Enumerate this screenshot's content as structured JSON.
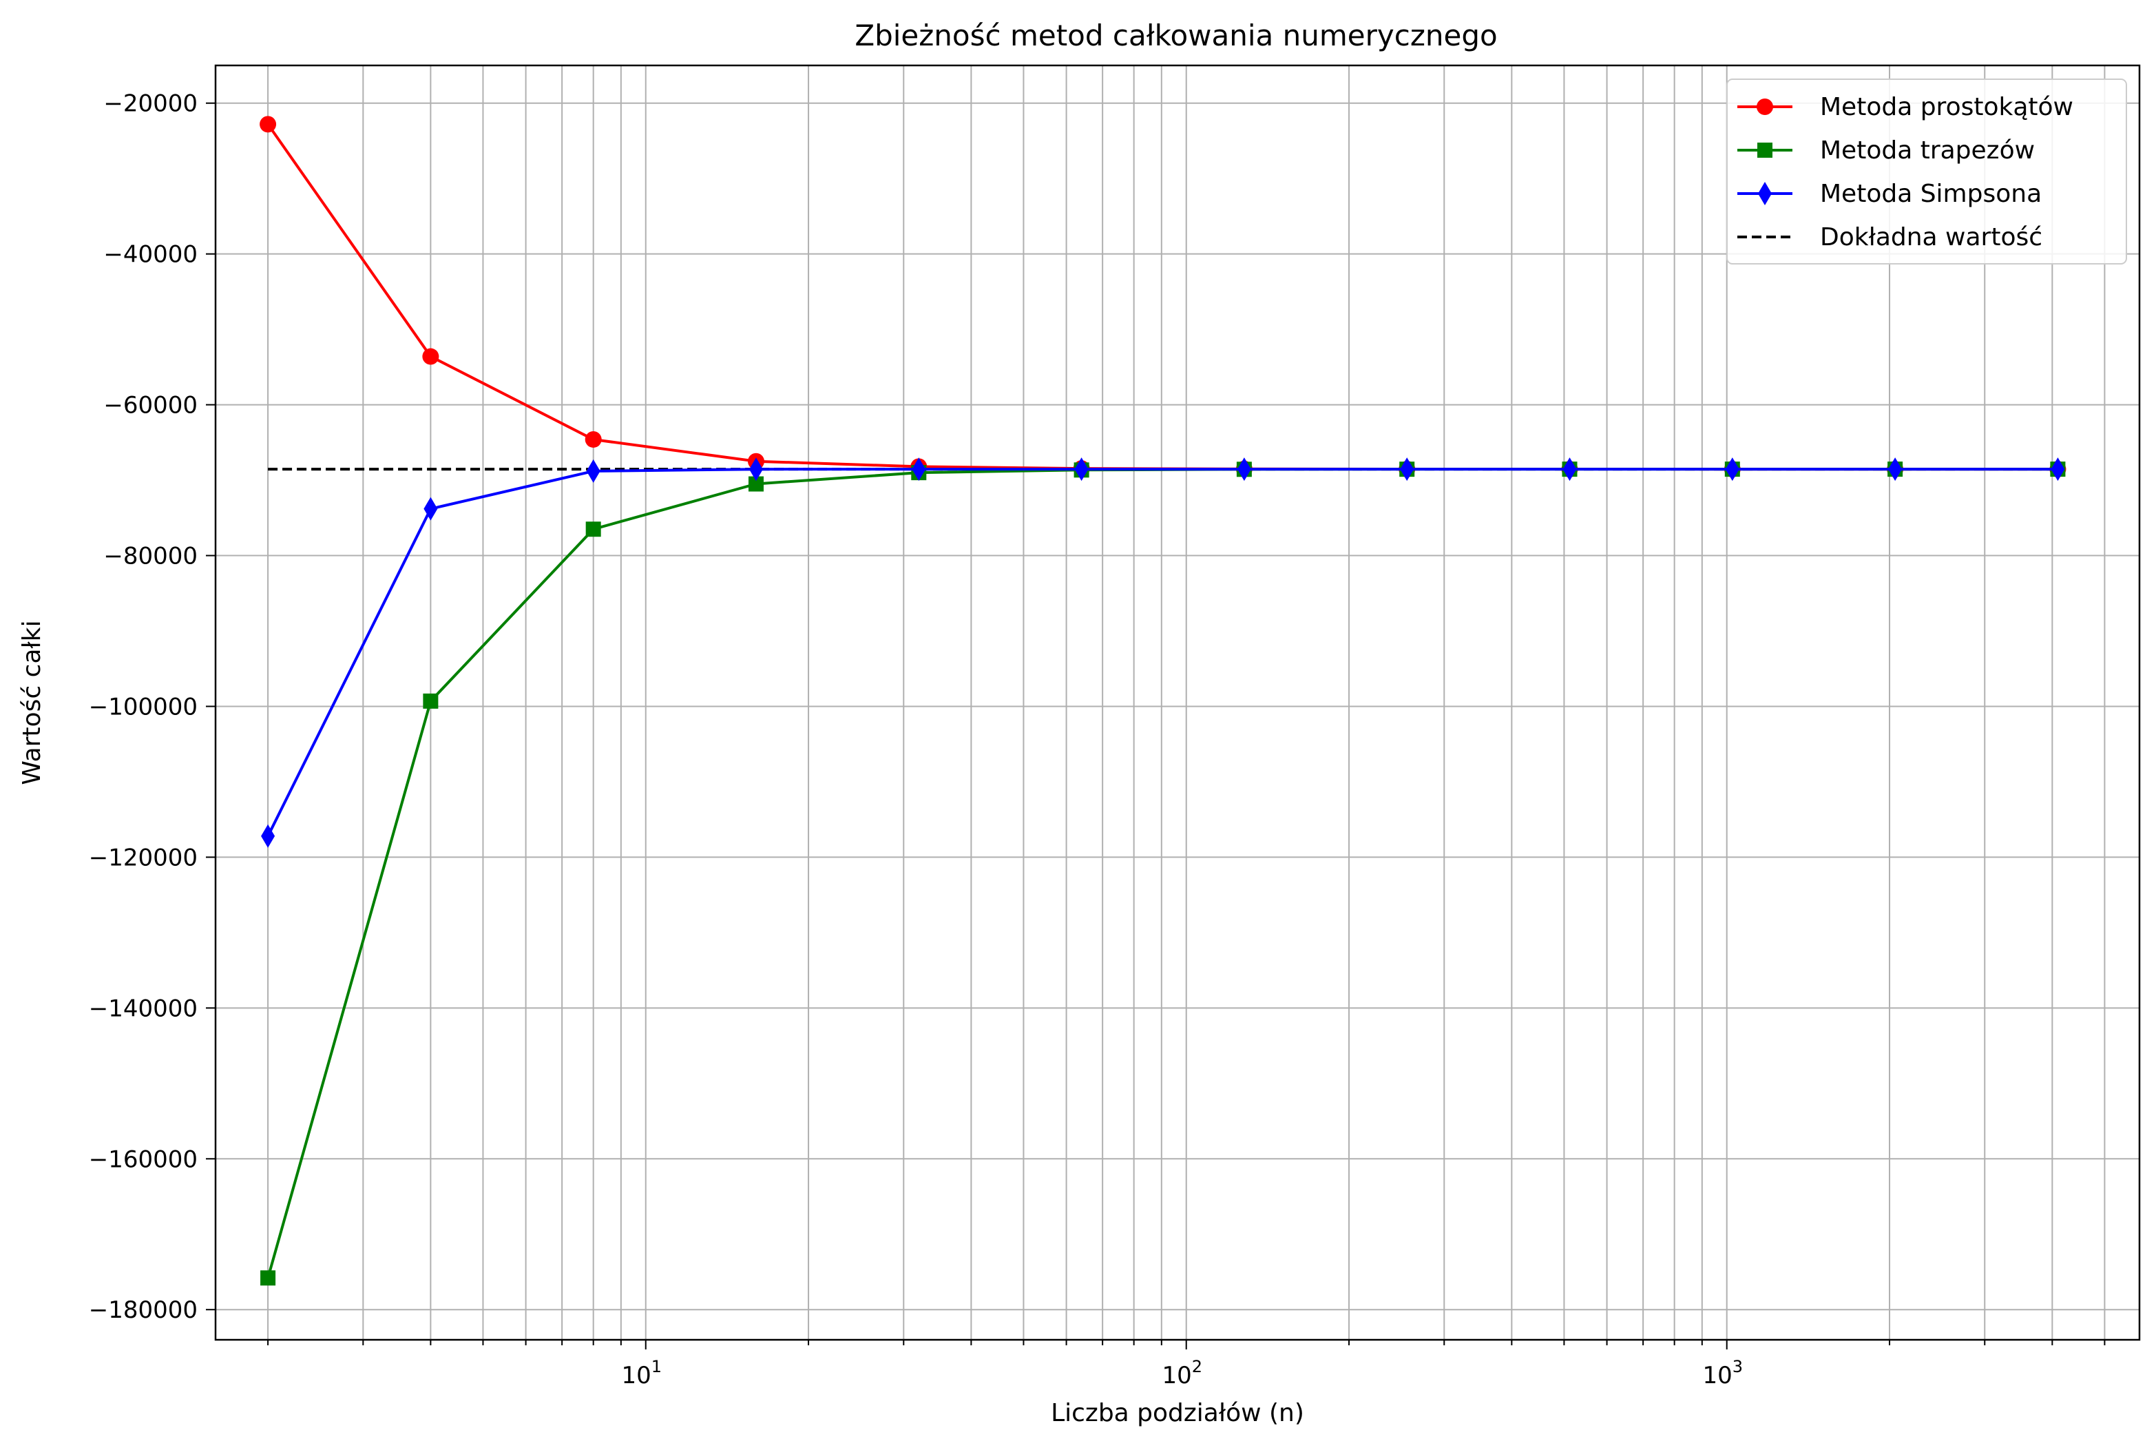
{
  "chart_data": {
    "type": "line",
    "title": "Zbieżność metod całkowania numerycznego",
    "xlabel": "Liczba podziałów (n)",
    "ylabel": "Wartość całki",
    "xscale": "log",
    "xlim": [
      1.6,
      5800
    ],
    "ylim": [
      -184000,
      -15000
    ],
    "grid": "both (major and minor)",
    "legend_position": "top-right",
    "x": [
      2,
      4,
      8,
      16,
      32,
      64,
      128,
      256,
      512,
      1024,
      2048,
      4096
    ],
    "x_ticks": [
      {
        "base": "10",
        "exp": "1",
        "value": 10
      },
      {
        "base": "10",
        "exp": "2",
        "value": 100
      },
      {
        "base": "10",
        "exp": "3",
        "value": 1000
      }
    ],
    "y_ticks": [
      {
        "label": "−20000",
        "value": -20000
      },
      {
        "label": "−40000",
        "value": -40000
      },
      {
        "label": "−60000",
        "value": -60000
      },
      {
        "label": "−80000",
        "value": -80000
      },
      {
        "label": "−100000",
        "value": -100000
      },
      {
        "label": "−120000",
        "value": -120000
      },
      {
        "label": "−140000",
        "value": -140000
      },
      {
        "label": "−160000",
        "value": -160000
      },
      {
        "label": "−180000",
        "value": -180000
      }
    ],
    "series": [
      {
        "name": "Metoda prostokątów",
        "color": "#ff0000",
        "marker": "circle",
        "values": [
          -22800,
          -53600,
          -64600,
          -67500,
          -68200,
          -68450,
          -68510,
          -68530,
          -68535,
          -68537,
          -68538,
          -68538
        ]
      },
      {
        "name": "Metoda trapezów",
        "color": "#008000",
        "marker": "square",
        "values": [
          -175800,
          -99300,
          -76500,
          -70500,
          -69000,
          -68650,
          -68560,
          -68545,
          -68540,
          -68539,
          -68538,
          -68538
        ]
      },
      {
        "name": "Metoda Simpsona",
        "color": "#0000ff",
        "marker": "thin_diamond",
        "values": [
          -117200,
          -73800,
          -68800,
          -68550,
          -68540,
          -68538,
          -68538,
          -68538,
          -68538,
          -68538,
          -68538,
          -68538
        ]
      }
    ],
    "reference": {
      "name": "Dokładna wartość",
      "color": "#000000",
      "style": "dashed",
      "value": -68538
    }
  }
}
